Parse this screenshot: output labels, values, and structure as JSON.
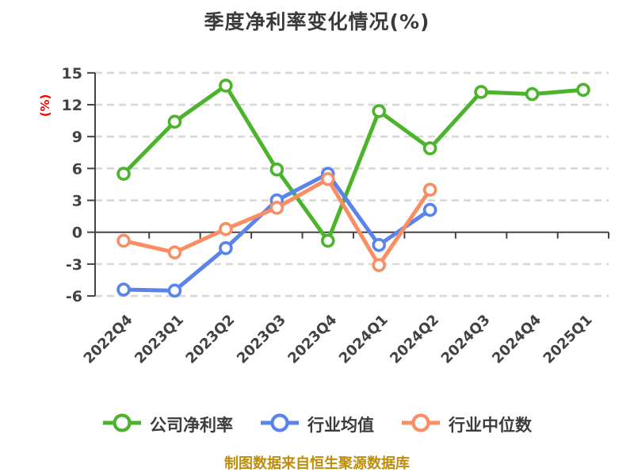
{
  "title": "季度净利率变化情况(%)",
  "y_axis_label": "(%)",
  "footer": "制图数据来自恒生聚源数据库",
  "colors": {
    "title_text": "#3a3a3a",
    "tick_text": "#424242",
    "axis_line": "#444444",
    "grid_line": "#d8d8d8",
    "y_axis_label": "#ff0000",
    "footer_text": "#bd8d0b",
    "marker_fill": "#ffffff"
  },
  "chart_data": {
    "type": "line",
    "title": "季度净利率变化情况(%)",
    "ylabel": "(%)",
    "categories": [
      "2022Q4",
      "2023Q1",
      "2023Q2",
      "2023Q3",
      "2023Q4",
      "2024Q1",
      "2024Q2",
      "2024Q3",
      "2024Q4",
      "2025Q1"
    ],
    "series": [
      {
        "key": "company-net-margin",
        "name": "公司净利率",
        "color": "#4cb42c",
        "values": [
          5.5,
          10.4,
          13.8,
          5.9,
          -0.8,
          11.4,
          7.9,
          13.2,
          13.0,
          13.4
        ]
      },
      {
        "key": "industry-mean",
        "name": "行业均值",
        "color": "#5a83eb",
        "values": [
          -5.4,
          -5.5,
          -1.5,
          3.0,
          5.5,
          -1.2,
          2.1,
          null,
          null,
          null
        ]
      },
      {
        "key": "industry-median",
        "name": "行业中位数",
        "color": "#f98e64",
        "values": [
          -0.8,
          -1.9,
          0.3,
          2.3,
          5.0,
          -3.1,
          4.0,
          null,
          null,
          null
        ]
      }
    ],
    "y_ticks": [
      15,
      12,
      9,
      6,
      3,
      0,
      -3,
      -6
    ],
    "ylim": [
      -6,
      15
    ],
    "grid": true,
    "grid_style": "dashed",
    "x_axis_at_zero": true,
    "legend_position": "bottom"
  }
}
